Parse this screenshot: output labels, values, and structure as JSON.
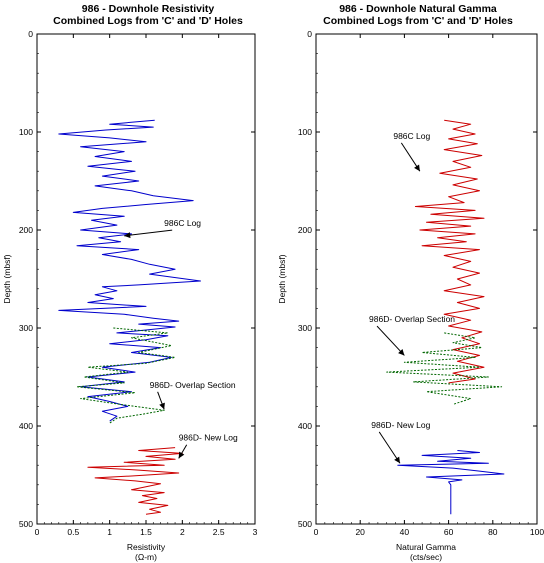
{
  "chart_data": [
    {
      "type": "line",
      "title": "986  -  Downhole  Resistivity",
      "subtitle": "Combined  Logs  from  'C'  and  'D'  Holes",
      "xlabel": "Resistivity",
      "xunit": "(Ω-m)",
      "ylabel": "Depth (mbsf)",
      "xlim": [
        0,
        3
      ],
      "ylim": [
        500,
        0
      ],
      "xticks": [
        "0",
        "0.5",
        "1",
        "1.5",
        "2",
        "2.5",
        "3"
      ],
      "yticks": [
        "0",
        "100",
        "200",
        "300",
        "400",
        "500"
      ],
      "series": [
        {
          "color": "#0000cc",
          "points": [
            [
              1.62,
              88
            ],
            [
              1.0,
              92
            ],
            [
              1.6,
              95
            ],
            [
              0.95,
              98
            ],
            [
              0.3,
              102
            ],
            [
              1.0,
              106
            ],
            [
              1.5,
              110
            ],
            [
              0.6,
              115
            ],
            [
              1.2,
              120
            ],
            [
              0.8,
              125
            ],
            [
              1.3,
              130
            ],
            [
              0.7,
              135
            ],
            [
              1.35,
              140
            ],
            [
              0.9,
              145
            ],
            [
              1.4,
              150
            ],
            [
              0.8,
              155
            ],
            [
              1.3,
              160
            ],
            [
              1.6,
              165
            ],
            [
              2.15,
              170
            ],
            [
              1.5,
              174
            ],
            [
              0.9,
              178
            ],
            [
              0.5,
              182
            ],
            [
              1.2,
              186
            ],
            [
              0.75,
              190
            ],
            [
              1.1,
              195
            ],
            [
              0.6,
              200
            ],
            [
              1.3,
              204
            ],
            [
              0.85,
              208
            ],
            [
              1.15,
              212
            ],
            [
              0.55,
              216
            ],
            [
              1.4,
              220
            ],
            [
              0.9,
              225
            ],
            [
              1.3,
              230
            ],
            [
              1.55,
              235
            ],
            [
              1.9,
              240
            ],
            [
              1.55,
              245
            ],
            [
              2.25,
              252
            ],
            [
              1.4,
              256
            ],
            [
              0.9,
              258
            ],
            [
              1.1,
              262
            ],
            [
              0.8,
              266
            ],
            [
              1.05,
              270
            ],
            [
              0.7,
              274
            ],
            [
              1.5,
              278
            ],
            [
              0.3,
              282
            ],
            [
              1.2,
              286
            ],
            [
              1.6,
              290
            ],
            [
              1.95,
              293
            ],
            [
              1.4,
              296
            ],
            [
              1.9,
              299
            ],
            [
              1.5,
              302
            ],
            [
              1.1,
              305
            ],
            [
              1.8,
              308
            ],
            [
              1.5,
              312
            ],
            [
              1.0,
              316
            ],
            [
              1.7,
              320
            ],
            [
              1.3,
              325
            ],
            [
              1.85,
              330
            ],
            [
              1.55,
              335
            ],
            [
              0.9,
              340
            ],
            [
              1.35,
              345
            ],
            [
              0.7,
              350
            ],
            [
              1.2,
              355
            ],
            [
              0.6,
              360
            ],
            [
              1.3,
              365
            ],
            [
              0.7,
              370
            ],
            [
              1.0,
              375
            ],
            [
              1.25,
              380
            ],
            [
              0.9,
              385
            ],
            [
              1.1,
              390
            ],
            [
              1.0,
              395
            ]
          ]
        },
        {
          "color": "#006600",
          "dashed": true,
          "points": [
            [
              1.05,
              300
            ],
            [
              1.8,
              305
            ],
            [
              1.3,
              310
            ],
            [
              1.85,
              318
            ],
            [
              1.4,
              325
            ],
            [
              1.9,
              330
            ],
            [
              1.5,
              336
            ],
            [
              0.7,
              340
            ],
            [
              1.25,
              345
            ],
            [
              0.65,
              350
            ],
            [
              1.2,
              356
            ],
            [
              0.55,
              360
            ],
            [
              1.35,
              366
            ],
            [
              0.6,
              372
            ],
            [
              1.15,
              378
            ],
            [
              1.75,
              384
            ],
            [
              1.45,
              388
            ],
            [
              1.1,
              392
            ],
            [
              1.0,
              397
            ]
          ]
        },
        {
          "color": "#cc0000",
          "points": [
            [
              1.9,
              422
            ],
            [
              1.4,
              425
            ],
            [
              2.0,
              428
            ],
            [
              1.5,
              431
            ],
            [
              1.9,
              434
            ],
            [
              1.2,
              437
            ],
            [
              1.75,
              440
            ],
            [
              0.7,
              442
            ],
            [
              1.4,
              445
            ],
            [
              1.95,
              448
            ],
            [
              1.3,
              451
            ],
            [
              0.8,
              453
            ],
            [
              1.35,
              456
            ],
            [
              1.7,
              459
            ],
            [
              1.5,
              462
            ],
            [
              1.3,
              465
            ],
            [
              1.75,
              468
            ],
            [
              1.45,
              471
            ],
            [
              1.65,
              474
            ],
            [
              1.4,
              478
            ],
            [
              1.8,
              481
            ],
            [
              1.55,
              485
            ],
            [
              1.7,
              488
            ],
            [
              1.5,
              490
            ]
          ]
        }
      ],
      "annotations": [
        {
          "text": "986C  Log",
          "x": 1.75,
          "y": 196,
          "arrow_to": [
            1.2,
            206
          ]
        },
        {
          "text": "986D-     Overlap  Section",
          "x": 1.55,
          "y": 361,
          "arrow_to": [
            1.75,
            383
          ]
        },
        {
          "text": "986D-  New  Log",
          "x": 1.95,
          "y": 415,
          "arrow_to": [
            1.95,
            433
          ]
        }
      ]
    },
    {
      "type": "line",
      "title": "986  -  Downhole  Natural  Gamma",
      "subtitle": "Combined  Logs  from  'C'  and  'D'  Holes",
      "xlabel": "Natural Gamma",
      "xunit": "(cts/sec)",
      "ylabel": "Depth (mbsf)",
      "xlim": [
        0,
        100
      ],
      "ylim": [
        500,
        0
      ],
      "xticks": [
        "0",
        "20",
        "40",
        "60",
        "80",
        "100"
      ],
      "yticks": [
        "0",
        "100",
        "200",
        "300",
        "400",
        "500"
      ],
      "series": [
        {
          "color": "#cc0000",
          "points": [
            [
              58,
              88
            ],
            [
              70,
              92
            ],
            [
              62,
              97
            ],
            [
              72,
              102
            ],
            [
              60,
              107
            ],
            [
              73,
              112
            ],
            [
              58,
              118
            ],
            [
              75,
              124
            ],
            [
              62,
              130
            ],
            [
              70,
              136
            ],
            [
              56,
              142
            ],
            [
              73,
              148
            ],
            [
              62,
              154
            ],
            [
              74,
              160
            ],
            [
              60,
              166
            ],
            [
              67,
              172
            ],
            [
              45,
              176
            ],
            [
              72,
              180
            ],
            [
              52,
              184
            ],
            [
              76,
              188
            ],
            [
              50,
              192
            ],
            [
              70,
              196
            ],
            [
              47,
              200
            ],
            [
              72,
              204
            ],
            [
              55,
              208
            ],
            [
              68,
              212
            ],
            [
              48,
              216
            ],
            [
              74,
              220
            ],
            [
              58,
              226
            ],
            [
              70,
              232
            ],
            [
              62,
              238
            ],
            [
              74,
              244
            ],
            [
              64,
              250
            ],
            [
              70,
              256
            ],
            [
              58,
              262
            ],
            [
              76,
              268
            ],
            [
              64,
              274
            ],
            [
              74,
              280
            ],
            [
              58,
              286
            ],
            [
              70,
              292
            ],
            [
              60,
              298
            ],
            [
              75,
              304
            ],
            [
              66,
              310
            ],
            [
              74,
              316
            ],
            [
              62,
              322
            ],
            [
              74,
              328
            ],
            [
              64,
              334
            ],
            [
              76,
              340
            ],
            [
              62,
              346
            ],
            [
              72,
              352
            ],
            [
              60,
              356
            ]
          ]
        },
        {
          "color": "#006600",
          "dashed": true,
          "points": [
            [
              58,
              305
            ],
            [
              72,
              310
            ],
            [
              62,
              315
            ],
            [
              75,
              320
            ],
            [
              48,
              325
            ],
            [
              72,
              330
            ],
            [
              40,
              335
            ],
            [
              74,
              340
            ],
            [
              32,
              345
            ],
            [
              78,
              350
            ],
            [
              44,
              355
            ],
            [
              84,
              360
            ],
            [
              50,
              365
            ],
            [
              70,
              372
            ],
            [
              62,
              378
            ]
          ]
        },
        {
          "color": "#0000cc",
          "points": [
            [
              64,
              425
            ],
            [
              74,
              427
            ],
            [
              48,
              430
            ],
            [
              70,
              433
            ],
            [
              55,
              436
            ],
            [
              78,
              438
            ],
            [
              37,
              440
            ],
            [
              62,
              443
            ],
            [
              74,
              446
            ],
            [
              85,
              449
            ],
            [
              50,
              452
            ],
            [
              66,
              455
            ],
            [
              60,
              457
            ],
            [
              61,
              460
            ],
            [
              61,
              470
            ],
            [
              61,
              480
            ],
            [
              61,
              490
            ]
          ]
        }
      ],
      "annotations": [
        {
          "text": "986C  Log",
          "x": 35,
          "y": 107,
          "arrow_to": [
            47,
            140
          ]
        },
        {
          "text": "986D-     Overlap  Section",
          "x": 24,
          "y": 294,
          "arrow_to": [
            40,
            328
          ]
        },
        {
          "text": "986D-  New  Log",
          "x": 25,
          "y": 402,
          "arrow_to": [
            38,
            438
          ]
        }
      ]
    }
  ]
}
